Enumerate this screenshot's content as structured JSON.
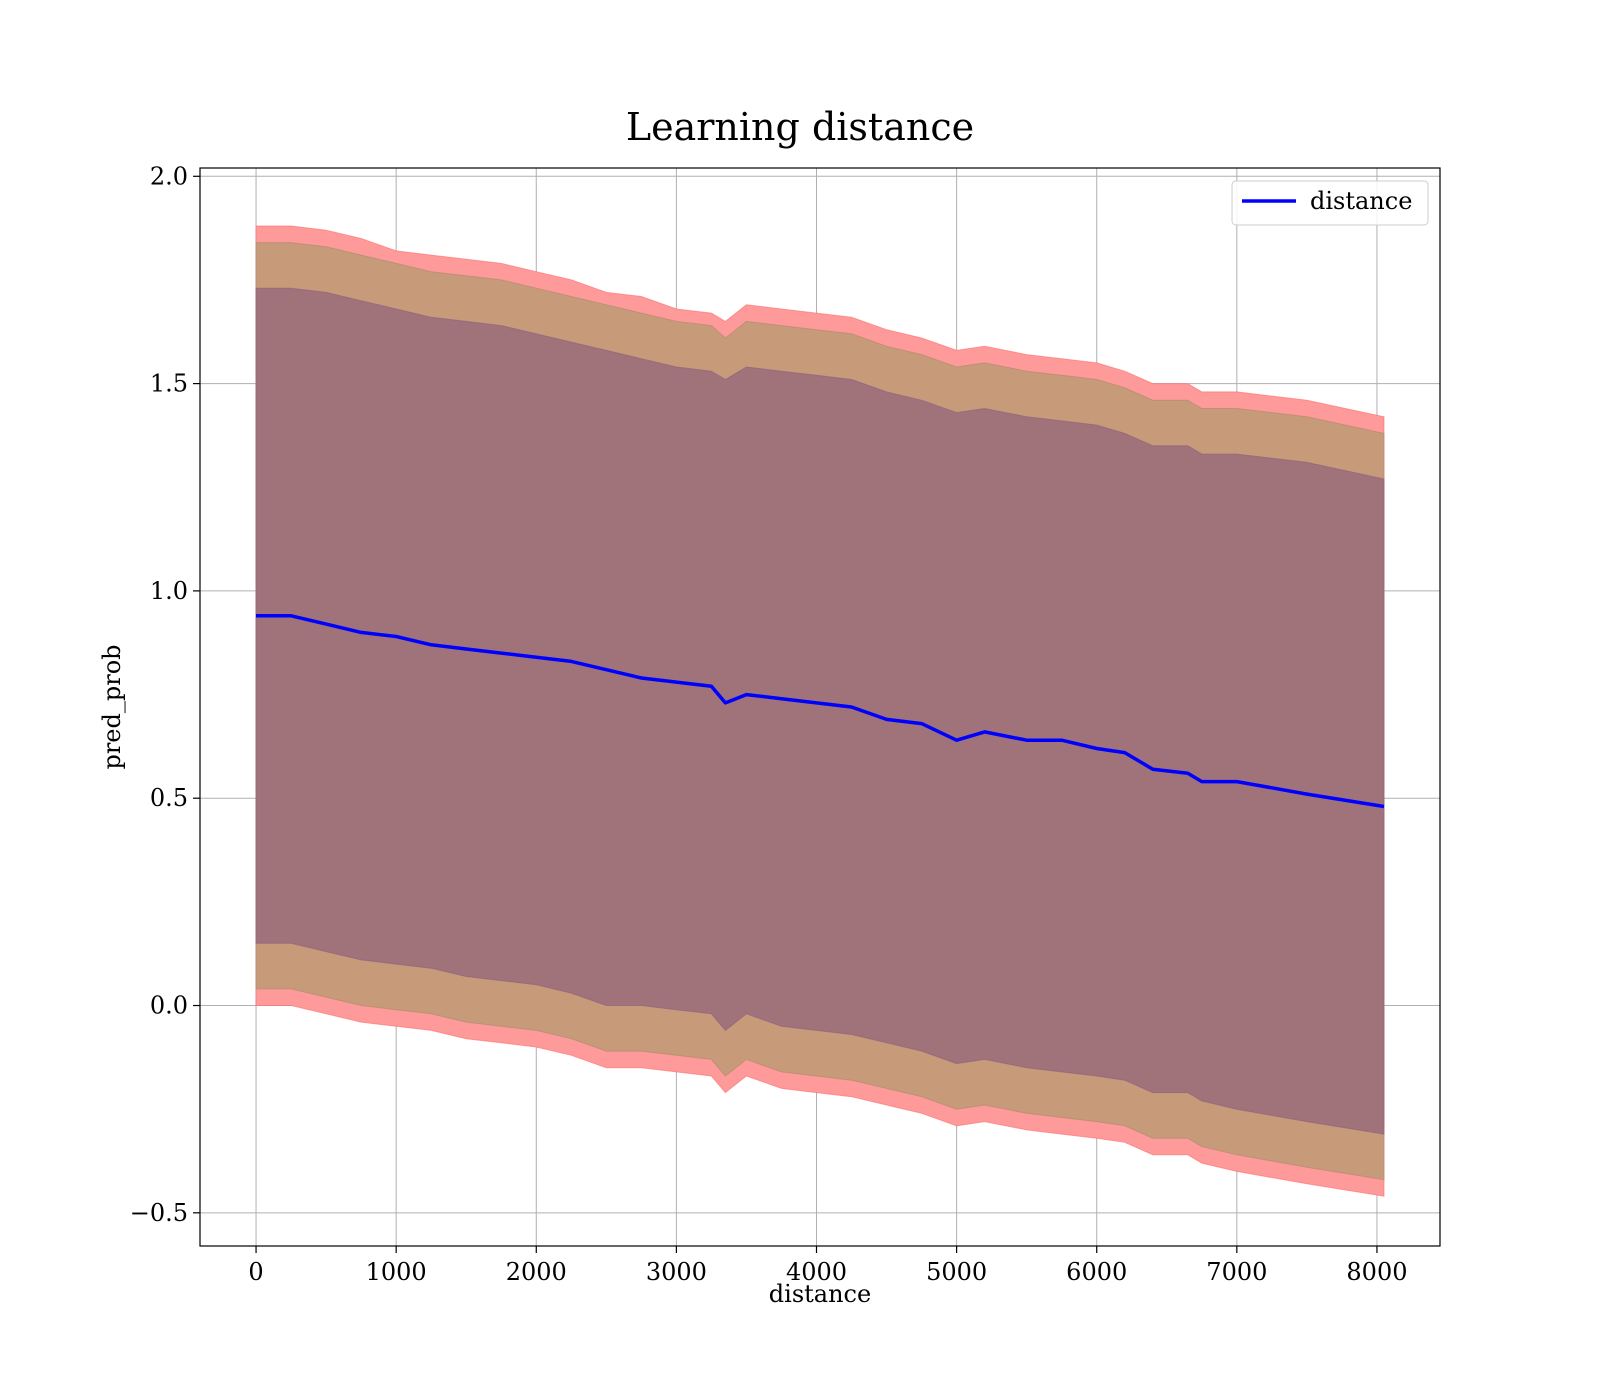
{
  "chart_data": {
    "type": "line",
    "title": "Learning distance",
    "xlabel": "distance",
    "ylabel": "pred_prob",
    "xlim": [
      -400,
      8450
    ],
    "ylim": [
      -0.58,
      2.02
    ],
    "x_ticks": [
      0,
      1000,
      2000,
      3000,
      4000,
      5000,
      6000,
      7000,
      8000
    ],
    "y_ticks": [
      -0.5,
      0.0,
      0.5,
      1.0,
      1.5,
      2.0
    ],
    "x_tick_labels": [
      "0",
      "1000",
      "2000",
      "3000",
      "4000",
      "5000",
      "6000",
      "7000",
      "8000"
    ],
    "y_tick_labels": [
      "−0.5",
      "0.0",
      "0.5",
      "1.0",
      "1.5",
      "2.0"
    ],
    "grid": true,
    "legend": {
      "placement": "top-right",
      "entries": [
        "distance"
      ]
    },
    "colors": {
      "line": "#0000ff",
      "band_outer": "#ff9a9a",
      "band_middle": "#c79a7a",
      "band_inner": "#a0727a"
    },
    "series": [
      {
        "name": "distance",
        "x": [
          0,
          250,
          500,
          750,
          1000,
          1250,
          1500,
          1750,
          2000,
          2250,
          2500,
          2750,
          3000,
          3250,
          3350,
          3500,
          3750,
          4000,
          4250,
          4500,
          4750,
          5000,
          5200,
          5500,
          5750,
          6000,
          6200,
          6400,
          6650,
          6750,
          7000,
          7500,
          8050
        ],
        "values": [
          0.94,
          0.94,
          0.92,
          0.9,
          0.89,
          0.87,
          0.86,
          0.85,
          0.84,
          0.83,
          0.81,
          0.79,
          0.78,
          0.77,
          0.73,
          0.75,
          0.74,
          0.73,
          0.72,
          0.69,
          0.68,
          0.64,
          0.66,
          0.64,
          0.64,
          0.62,
          0.61,
          0.57,
          0.56,
          0.54,
          0.54,
          0.51,
          0.48
        ]
      }
    ],
    "bands": [
      {
        "x": [
          0,
          250,
          500,
          750,
          1000,
          1250,
          1500,
          1750,
          2000,
          2250,
          2500,
          2750,
          3000,
          3250,
          3350,
          3500,
          3750,
          4000,
          4250,
          4500,
          4750,
          5000,
          5200,
          5500,
          5750,
          6000,
          6200,
          6400,
          6650,
          6750,
          7000,
          7500,
          8050
        ],
        "upper": [
          1.88,
          1.88,
          1.87,
          1.85,
          1.82,
          1.81,
          1.8,
          1.79,
          1.77,
          1.75,
          1.72,
          1.71,
          1.68,
          1.67,
          1.65,
          1.69,
          1.68,
          1.67,
          1.66,
          1.63,
          1.61,
          1.58,
          1.59,
          1.57,
          1.56,
          1.55,
          1.53,
          1.5,
          1.5,
          1.48,
          1.48,
          1.46,
          1.42
        ],
        "lower": [
          0.0,
          0.0,
          -0.02,
          -0.04,
          -0.05,
          -0.06,
          -0.08,
          -0.09,
          -0.1,
          -0.12,
          -0.15,
          -0.15,
          -0.16,
          -0.17,
          -0.21,
          -0.17,
          -0.2,
          -0.21,
          -0.22,
          -0.24,
          -0.26,
          -0.29,
          -0.28,
          -0.3,
          -0.31,
          -0.32,
          -0.33,
          -0.36,
          -0.36,
          -0.38,
          -0.4,
          -0.43,
          -0.46
        ]
      },
      {
        "x": [
          0,
          250,
          500,
          750,
          1000,
          1250,
          1500,
          1750,
          2000,
          2250,
          2500,
          2750,
          3000,
          3250,
          3350,
          3500,
          3750,
          4000,
          4250,
          4500,
          4750,
          5000,
          5200,
          5500,
          5750,
          6000,
          6200,
          6400,
          6650,
          6750,
          7000,
          7500,
          8050
        ],
        "upper": [
          1.84,
          1.84,
          1.83,
          1.81,
          1.79,
          1.77,
          1.76,
          1.75,
          1.73,
          1.71,
          1.69,
          1.67,
          1.65,
          1.64,
          1.61,
          1.65,
          1.64,
          1.63,
          1.62,
          1.59,
          1.57,
          1.54,
          1.55,
          1.53,
          1.52,
          1.51,
          1.49,
          1.46,
          1.46,
          1.44,
          1.44,
          1.42,
          1.38
        ],
        "lower": [
          0.04,
          0.04,
          0.02,
          0.0,
          -0.01,
          -0.02,
          -0.04,
          -0.05,
          -0.06,
          -0.08,
          -0.11,
          -0.11,
          -0.12,
          -0.13,
          -0.17,
          -0.13,
          -0.16,
          -0.17,
          -0.18,
          -0.2,
          -0.22,
          -0.25,
          -0.24,
          -0.26,
          -0.27,
          -0.28,
          -0.29,
          -0.32,
          -0.32,
          -0.34,
          -0.36,
          -0.39,
          -0.42
        ]
      },
      {
        "x": [
          0,
          250,
          500,
          750,
          1000,
          1250,
          1500,
          1750,
          2000,
          2250,
          2500,
          2750,
          3000,
          3250,
          3350,
          3500,
          3750,
          4000,
          4250,
          4500,
          4750,
          5000,
          5200,
          5500,
          5750,
          6000,
          6200,
          6400,
          6650,
          6750,
          7000,
          7500,
          8050
        ],
        "upper": [
          1.73,
          1.73,
          1.72,
          1.7,
          1.68,
          1.66,
          1.65,
          1.64,
          1.62,
          1.6,
          1.58,
          1.56,
          1.54,
          1.53,
          1.51,
          1.54,
          1.53,
          1.52,
          1.51,
          1.48,
          1.46,
          1.43,
          1.44,
          1.42,
          1.41,
          1.4,
          1.38,
          1.35,
          1.35,
          1.33,
          1.33,
          1.31,
          1.27
        ],
        "lower": [
          0.15,
          0.15,
          0.13,
          0.11,
          0.1,
          0.09,
          0.07,
          0.06,
          0.05,
          0.03,
          0.0,
          0.0,
          -0.01,
          -0.02,
          -0.06,
          -0.02,
          -0.05,
          -0.06,
          -0.07,
          -0.09,
          -0.11,
          -0.14,
          -0.13,
          -0.15,
          -0.16,
          -0.17,
          -0.18,
          -0.21,
          -0.21,
          -0.23,
          -0.25,
          -0.28,
          -0.31
        ]
      }
    ]
  }
}
